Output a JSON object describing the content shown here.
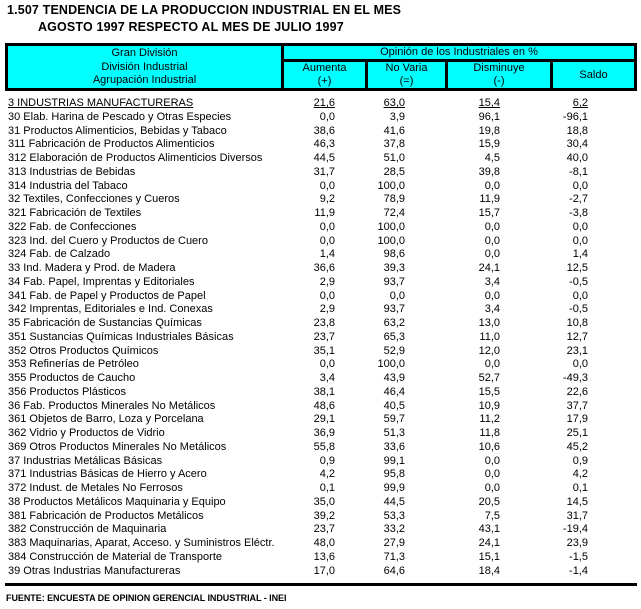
{
  "title": {
    "line1": "1.507 TENDENCIA DE LA PRODUCCION INDUSTRIAL EN EL MES",
    "line2": "AGOSTO 1997 RESPECTO AL MES DE JULIO 1997"
  },
  "colors": {
    "header_bg": "#00ffff",
    "border": "#000000"
  },
  "table": {
    "header": {
      "group_lines": [
        "Gran División",
        "División Industrial",
        "Agrupación Industrial"
      ],
      "opinion_span": "Opinión de los Industriales en %",
      "columns": [
        {
          "label": "Aumenta",
          "sign": "(+)"
        },
        {
          "label": "No Varia",
          "sign": "(=)"
        },
        {
          "label": "Disminuye",
          "sign": "(-)"
        },
        {
          "label": "Saldo",
          "sign": ""
        }
      ]
    },
    "rows": [
      {
        "label": "3 INDUSTRIAS MANUFACTURERAS",
        "aumenta": "21,6",
        "no_varia": "63,0",
        "disminuye": "15,4",
        "saldo": "6,2",
        "emphasis": true
      },
      {
        "label": "30 Elab. Harina de Pescado y Otras Especies",
        "aumenta": "0,0",
        "no_varia": "3,9",
        "disminuye": "96,1",
        "saldo": "-96,1",
        "emphasis": false
      },
      {
        "label": "31 Productos Alimenticios, Bebidas y Tabaco",
        "aumenta": "38,6",
        "no_varia": "41,6",
        "disminuye": "19,8",
        "saldo": "18,8",
        "emphasis": false
      },
      {
        "label": "311 Fabricación de Productos Alimenticios",
        "aumenta": "46,3",
        "no_varia": "37,8",
        "disminuye": "15,9",
        "saldo": "30,4",
        "emphasis": false
      },
      {
        "label": "312 Elaboración de Productos Alimenticios Diversos",
        "aumenta": "44,5",
        "no_varia": "51,0",
        "disminuye": "4,5",
        "saldo": "40,0",
        "emphasis": false
      },
      {
        "label": "313 Industrias de Bebidas",
        "aumenta": "31,7",
        "no_varia": "28,5",
        "disminuye": "39,8",
        "saldo": "-8,1",
        "emphasis": false
      },
      {
        "label": "314 Industria del Tabaco",
        "aumenta": "0,0",
        "no_varia": "100,0",
        "disminuye": "0,0",
        "saldo": "0,0",
        "emphasis": false
      },
      {
        "label": "32 Textiles, Confecciones y Cueros",
        "aumenta": "9,2",
        "no_varia": "78,9",
        "disminuye": "11,9",
        "saldo": "-2,7",
        "emphasis": false
      },
      {
        "label": "321 Fabricación de Textiles",
        "aumenta": "11,9",
        "no_varia": "72,4",
        "disminuye": "15,7",
        "saldo": "-3,8",
        "emphasis": false
      },
      {
        "label": "322 Fab. de Confecciones",
        "aumenta": "0,0",
        "no_varia": "100,0",
        "disminuye": "0,0",
        "saldo": "0,0",
        "emphasis": false
      },
      {
        "label": "323 Ind. del Cuero y Productos de Cuero",
        "aumenta": "0,0",
        "no_varia": "100,0",
        "disminuye": "0,0",
        "saldo": "0,0",
        "emphasis": false
      },
      {
        "label": "324 Fab. de Calzado",
        "aumenta": "1,4",
        "no_varia": "98,6",
        "disminuye": "0,0",
        "saldo": "1,4",
        "emphasis": false
      },
      {
        "label": "33 Ind. Madera y Prod. de Madera",
        "aumenta": "36,6",
        "no_varia": "39,3",
        "disminuye": "24,1",
        "saldo": "12,5",
        "emphasis": false
      },
      {
        "label": "34 Fab. Papel, Imprentas y Editoriales",
        "aumenta": "2,9",
        "no_varia": "93,7",
        "disminuye": "3,4",
        "saldo": "-0,5",
        "emphasis": false
      },
      {
        "label": "341 Fab. de Papel y Productos de Papel",
        "aumenta": "0,0",
        "no_varia": "0,0",
        "disminuye": "0,0",
        "saldo": "0,0",
        "emphasis": false
      },
      {
        "label": "342 Imprentas, Editoriales e Ind. Conexas",
        "aumenta": "2,9",
        "no_varia": "93,7",
        "disminuye": "3,4",
        "saldo": "-0,5",
        "emphasis": false
      },
      {
        "label": "35 Fabricación de Sustancias Químicas",
        "aumenta": "23,8",
        "no_varia": "63,2",
        "disminuye": "13,0",
        "saldo": "10,8",
        "emphasis": false
      },
      {
        "label": "351 Sustancias Químicas Industriales Básicas",
        "aumenta": "23,7",
        "no_varia": "65,3",
        "disminuye": "11,0",
        "saldo": "12,7",
        "emphasis": false
      },
      {
        "label": "352 Otros Productos Químicos",
        "aumenta": "35,1",
        "no_varia": "52,9",
        "disminuye": "12,0",
        "saldo": "23,1",
        "emphasis": false
      },
      {
        "label": "353 Refinerías de Petróleo",
        "aumenta": "0,0",
        "no_varia": "100,0",
        "disminuye": "0,0",
        "saldo": "0,0",
        "emphasis": false
      },
      {
        "label": "355 Productos de Caucho",
        "aumenta": "3,4",
        "no_varia": "43,9",
        "disminuye": "52,7",
        "saldo": "-49,3",
        "emphasis": false
      },
      {
        "label": "356 Productos Plásticos",
        "aumenta": "38,1",
        "no_varia": "46,4",
        "disminuye": "15,5",
        "saldo": "22,6",
        "emphasis": false
      },
      {
        "label": "36 Fab. Productos Minerales No Metálicos",
        "aumenta": "48,6",
        "no_varia": "40,5",
        "disminuye": "10,9",
        "saldo": "37,7",
        "emphasis": false
      },
      {
        "label": "361 Objetos de Barro, Loza y Porcelana",
        "aumenta": "29,1",
        "no_varia": "59,7",
        "disminuye": "11,2",
        "saldo": "17,9",
        "emphasis": false
      },
      {
        "label": "362 Vidrio y Productos de Vidrio",
        "aumenta": "36,9",
        "no_varia": "51,3",
        "disminuye": "11,8",
        "saldo": "25,1",
        "emphasis": false
      },
      {
        "label": "369 Otros Productos Minerales No Metálicos",
        "aumenta": "55,8",
        "no_varia": "33,6",
        "disminuye": "10,6",
        "saldo": "45,2",
        "emphasis": false
      },
      {
        "label": "37 Industrias Metálicas Básicas",
        "aumenta": "0,9",
        "no_varia": "99,1",
        "disminuye": "0,0",
        "saldo": "0,9",
        "emphasis": false
      },
      {
        "label": "371 Industrias Básicas de Hierro y Acero",
        "aumenta": "4,2",
        "no_varia": "95,8",
        "disminuye": "0,0",
        "saldo": "4,2",
        "emphasis": false
      },
      {
        "label": "372 Indust. de Metales No Ferrosos",
        "aumenta": "0,1",
        "no_varia": "99,9",
        "disminuye": "0,0",
        "saldo": "0,1",
        "emphasis": false
      },
      {
        "label": "38 Productos Metálicos Maquinaria y Equipo",
        "aumenta": "35,0",
        "no_varia": "44,5",
        "disminuye": "20,5",
        "saldo": "14,5",
        "emphasis": false
      },
      {
        "label": "381 Fabricación de Productos Metálicos",
        "aumenta": "39,2",
        "no_varia": "53,3",
        "disminuye": "7,5",
        "saldo": "31,7",
        "emphasis": false
      },
      {
        "label": "382 Construcción de Maquinaria",
        "aumenta": "23,7",
        "no_varia": "33,2",
        "disminuye": "43,1",
        "saldo": "-19,4",
        "emphasis": false
      },
      {
        "label": "383 Maquinarias, Aparat, Acceso. y Suministros Eléctr.",
        "aumenta": "48,0",
        "no_varia": "27,9",
        "disminuye": "24,1",
        "saldo": "23,9",
        "emphasis": false
      },
      {
        "label": "384 Construcción de Material de Transporte",
        "aumenta": "13,6",
        "no_varia": "71,3",
        "disminuye": "15,1",
        "saldo": "-1,5",
        "emphasis": false
      },
      {
        "label": "39 Otras Industrias Manufactureras",
        "aumenta": "17,0",
        "no_varia": "64,6",
        "disminuye": "18,4",
        "saldo": "-1,4",
        "emphasis": false
      }
    ]
  },
  "footer": {
    "source": "FUENTE: ENCUESTA DE OPINION GERENCIAL INDUSTRIAL - INEI"
  }
}
